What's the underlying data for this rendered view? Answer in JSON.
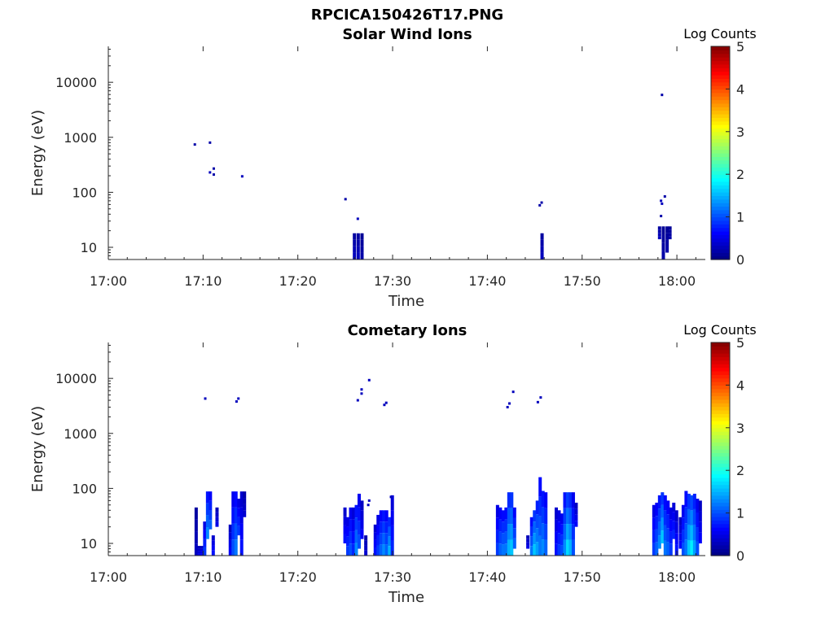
{
  "figure": {
    "title": "RPCICA150426T17.PNG"
  },
  "colors": {
    "axis": "#262626",
    "background": "#ffffff"
  },
  "chart_data": [
    {
      "type": "heatmap",
      "title": "Solar Wind Ions",
      "xlabel": "Time",
      "ylabel": "Energy (eV)",
      "x_ticks": [
        "17:00",
        "17:10",
        "17:20",
        "17:30",
        "17:40",
        "17:50",
        "18:00"
      ],
      "xlim_minutes": [
        0,
        63
      ],
      "y_ticks": [
        "10",
        "100",
        "1000",
        "10000"
      ],
      "y_scale": "log",
      "ylim": [
        6,
        45000
      ],
      "colorbar": {
        "label": "Log Counts",
        "ticks": [
          "0",
          "1",
          "2",
          "3",
          "4",
          "5"
        ],
        "range": [
          0,
          5
        ],
        "colormap": "jet"
      },
      "points": [
        [
          9.0,
          740,
          0.2
        ],
        [
          10.6,
          800,
          0.2
        ],
        [
          10.6,
          230,
          0.3
        ],
        [
          11.0,
          210,
          0.2
        ],
        [
          11.0,
          270,
          0.2
        ],
        [
          14.0,
          195,
          0.3
        ],
        [
          24.9,
          75,
          0.2
        ],
        [
          26.2,
          33,
          0.3
        ],
        [
          45.4,
          58,
          0.2
        ],
        [
          45.6,
          65,
          0.2
        ],
        [
          58.3,
          5900,
          0.2
        ],
        [
          58.2,
          70,
          0.3
        ],
        [
          58.3,
          62,
          0.3
        ],
        [
          58.6,
          84,
          0.2
        ],
        [
          58.2,
          37,
          0.2
        ]
      ],
      "columns": [
        [
          25.8,
          6,
          18,
          0.3
        ],
        [
          26.2,
          6,
          18,
          0.3
        ],
        [
          26.6,
          6,
          18,
          0.2
        ],
        [
          45.6,
          6,
          18,
          0.3
        ],
        [
          58.0,
          14,
          24,
          0.3
        ],
        [
          58.4,
          6,
          24,
          0.2
        ],
        [
          58.8,
          8,
          24,
          0.2
        ],
        [
          59.1,
          14,
          24,
          0.2
        ]
      ]
    },
    {
      "type": "heatmap",
      "title": "Cometary Ions",
      "xlabel": "Time",
      "ylabel": "Energy (eV)",
      "x_ticks": [
        "17:00",
        "17:10",
        "17:20",
        "17:30",
        "17:40",
        "17:50",
        "18:00"
      ],
      "xlim_minutes": [
        0,
        63
      ],
      "y_ticks": [
        "10",
        "100",
        "1000",
        "10000"
      ],
      "y_scale": "log",
      "ylim": [
        6,
        45000
      ],
      "colorbar": {
        "label": "Log Counts",
        "ticks": [
          "0",
          "1",
          "2",
          "3",
          "4",
          "5"
        ],
        "range": [
          0,
          5
        ],
        "colormap": "jet"
      },
      "points": [
        [
          10.1,
          4300,
          0.3
        ],
        [
          13.4,
          3800,
          0.3
        ],
        [
          13.6,
          4300,
          0.3
        ],
        [
          26.2,
          4000,
          0.3
        ],
        [
          26.6,
          5300,
          0.3
        ],
        [
          26.6,
          6300,
          0.3
        ],
        [
          27.4,
          9300,
          0.3
        ],
        [
          29.0,
          3300,
          0.3
        ],
        [
          29.2,
          3600,
          0.3
        ],
        [
          42.0,
          3000,
          0.3
        ],
        [
          42.2,
          3500,
          0.3
        ],
        [
          42.6,
          5700,
          0.3
        ],
        [
          45.2,
          3700,
          0.3
        ],
        [
          45.5,
          4500,
          0.3
        ],
        [
          29.7,
          70,
          0.3
        ],
        [
          27.4,
          60,
          0.3
        ],
        [
          27.3,
          50,
          0.3
        ]
      ],
      "columns": [
        [
          9.1,
          6,
          45,
          0.3
        ],
        [
          9.4,
          6,
          9,
          0.5
        ],
        [
          9.7,
          6,
          9,
          0.6
        ],
        [
          10.0,
          6,
          25,
          0.9
        ],
        [
          10.3,
          12,
          88,
          1.3
        ],
        [
          10.6,
          18,
          88,
          1.1
        ],
        [
          10.9,
          6,
          14,
          0.7
        ],
        [
          11.3,
          20,
          45,
          0.5
        ],
        [
          12.7,
          6,
          22,
          0.6
        ],
        [
          13.0,
          6,
          88,
          1.0
        ],
        [
          13.3,
          6,
          88,
          1.2
        ],
        [
          13.6,
          14,
          65,
          0.9
        ],
        [
          13.9,
          6,
          88,
          0.7
        ],
        [
          14.2,
          30,
          88,
          0.4
        ],
        [
          24.8,
          10,
          45,
          0.7
        ],
        [
          25.1,
          6,
          30,
          0.9
        ],
        [
          25.4,
          6,
          45,
          1.0
        ],
        [
          25.7,
          6,
          45,
          0.8
        ],
        [
          26.0,
          6,
          50,
          1.3
        ],
        [
          26.3,
          8,
          80,
          1.0
        ],
        [
          26.6,
          12,
          60,
          0.6
        ],
        [
          27.0,
          6,
          14,
          0.4
        ],
        [
          28.0,
          6,
          22,
          0.7
        ],
        [
          28.3,
          6,
          33,
          0.9
        ],
        [
          28.6,
          6,
          40,
          1.1
        ],
        [
          28.9,
          6,
          40,
          1.3
        ],
        [
          29.2,
          6,
          40,
          1.1
        ],
        [
          29.5,
          6,
          30,
          1.5
        ],
        [
          29.8,
          6,
          75,
          0.8
        ],
        [
          40.9,
          6,
          50,
          0.9
        ],
        [
          41.2,
          6,
          45,
          1.1
        ],
        [
          41.5,
          6,
          40,
          1.2
        ],
        [
          41.8,
          6,
          45,
          1.2
        ],
        [
          42.1,
          6,
          85,
          1.5
        ],
        [
          42.4,
          6,
          85,
          1.6
        ],
        [
          42.7,
          8,
          45,
          1.1
        ],
        [
          44.1,
          8,
          14,
          0.5
        ],
        [
          44.5,
          6,
          30,
          1.2
        ],
        [
          44.8,
          6,
          40,
          1.6
        ],
        [
          45.1,
          6,
          60,
          1.4
        ],
        [
          45.4,
          6,
          160,
          1.2
        ],
        [
          45.7,
          6,
          90,
          1.3
        ],
        [
          46.0,
          6,
          85,
          1.1
        ],
        [
          47.1,
          6,
          45,
          0.7
        ],
        [
          47.4,
          6,
          40,
          0.9
        ],
        [
          47.7,
          6,
          35,
          1.0
        ],
        [
          48.0,
          6,
          85,
          1.3
        ],
        [
          48.3,
          6,
          85,
          1.7
        ],
        [
          48.6,
          6,
          85,
          1.5
        ],
        [
          48.9,
          6,
          85,
          1.0
        ],
        [
          49.2,
          20,
          55,
          0.6
        ],
        [
          57.4,
          6,
          50,
          0.9
        ],
        [
          57.7,
          6,
          55,
          1.1
        ],
        [
          58.0,
          8,
          75,
          1.3
        ],
        [
          58.3,
          10,
          85,
          1.6
        ],
        [
          58.6,
          6,
          75,
          1.2
        ],
        [
          58.9,
          6,
          60,
          1.1
        ],
        [
          59.2,
          6,
          45,
          0.9
        ],
        [
          59.5,
          12,
          55,
          0.8
        ],
        [
          59.8,
          6,
          40,
          0.7
        ],
        [
          60.2,
          8,
          30,
          0.6
        ],
        [
          60.5,
          6,
          50,
          1.0
        ],
        [
          60.8,
          6,
          90,
          1.2
        ],
        [
          61.1,
          6,
          80,
          1.6
        ],
        [
          61.4,
          6,
          75,
          1.8
        ],
        [
          61.7,
          6,
          80,
          1.4
        ],
        [
          62.0,
          6,
          65,
          1.0
        ],
        [
          62.3,
          10,
          60,
          0.6
        ]
      ]
    }
  ]
}
